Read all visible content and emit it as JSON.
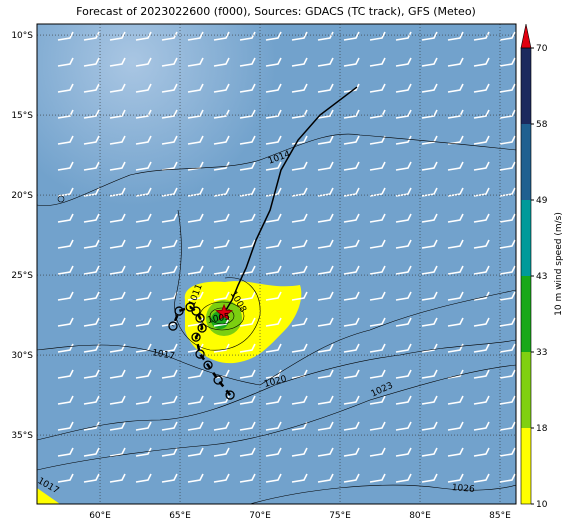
{
  "map": {
    "title": "Forecast of 2023022600 (f000), Sources: GDACS (TC track), GFS (Meteo)",
    "xlim": [
      56.06,
      86
    ],
    "ylim": [
      -39.31,
      -9.31
    ],
    "xticks": [
      {
        "value": 60,
        "label": "60°E"
      },
      {
        "value": 65,
        "label": "65°E"
      },
      {
        "value": 70,
        "label": "70°E"
      },
      {
        "value": 75,
        "label": "75°E"
      },
      {
        "value": 80,
        "label": "80°E"
      },
      {
        "value": 85,
        "label": "85°E"
      }
    ],
    "yticks": [
      {
        "value": -10,
        "label": "10°S"
      },
      {
        "value": -15,
        "label": "15°S"
      },
      {
        "value": -20,
        "label": "20°S"
      },
      {
        "value": -25,
        "label": "25°S"
      },
      {
        "value": -30,
        "label": "30°S"
      },
      {
        "value": -35,
        "label": "35°S"
      }
    ],
    "grid": true,
    "colorbar": {
      "label": "10 m wind speed (m/s)",
      "ticks": [
        10,
        18,
        33,
        43,
        49,
        58,
        70
      ],
      "colors": [
        "#ffff00",
        "#80d010",
        "#18a818",
        "#009a9a",
        "#1f6090",
        "#1c2a5e"
      ],
      "extend_color": "#e00010"
    },
    "isobars": [
      1014,
      1017,
      1020,
      1023,
      1026,
      1008,
      1005,
      1011,
      1017
    ],
    "track_forecast": {
      "lon": [
        67.75,
        68.25,
        68.63,
        69.13,
        69.75,
        70.63,
        71.31,
        72.38,
        73.75,
        76.06
      ],
      "lat": [
        -27.38,
        -26.56,
        -25.63,
        -24.56,
        -22.81,
        -20.94,
        -18.44,
        -16.56,
        -15,
        -13.25
      ]
    },
    "track_past": {
      "lon": [
        68.13,
        67.38,
        66.75,
        66.25,
        66,
        66.38,
        66.25,
        66,
        65.63,
        64.94,
        64.56
      ],
      "lat": [
        -32.5,
        -31.56,
        -30.63,
        -29.94,
        -28.88,
        -28.31,
        -27.69,
        -27.25,
        -27,
        -27.25,
        -28.19
      ]
    },
    "storm_position": {
      "lon": 67.75,
      "lat": -27.38
    }
  }
}
